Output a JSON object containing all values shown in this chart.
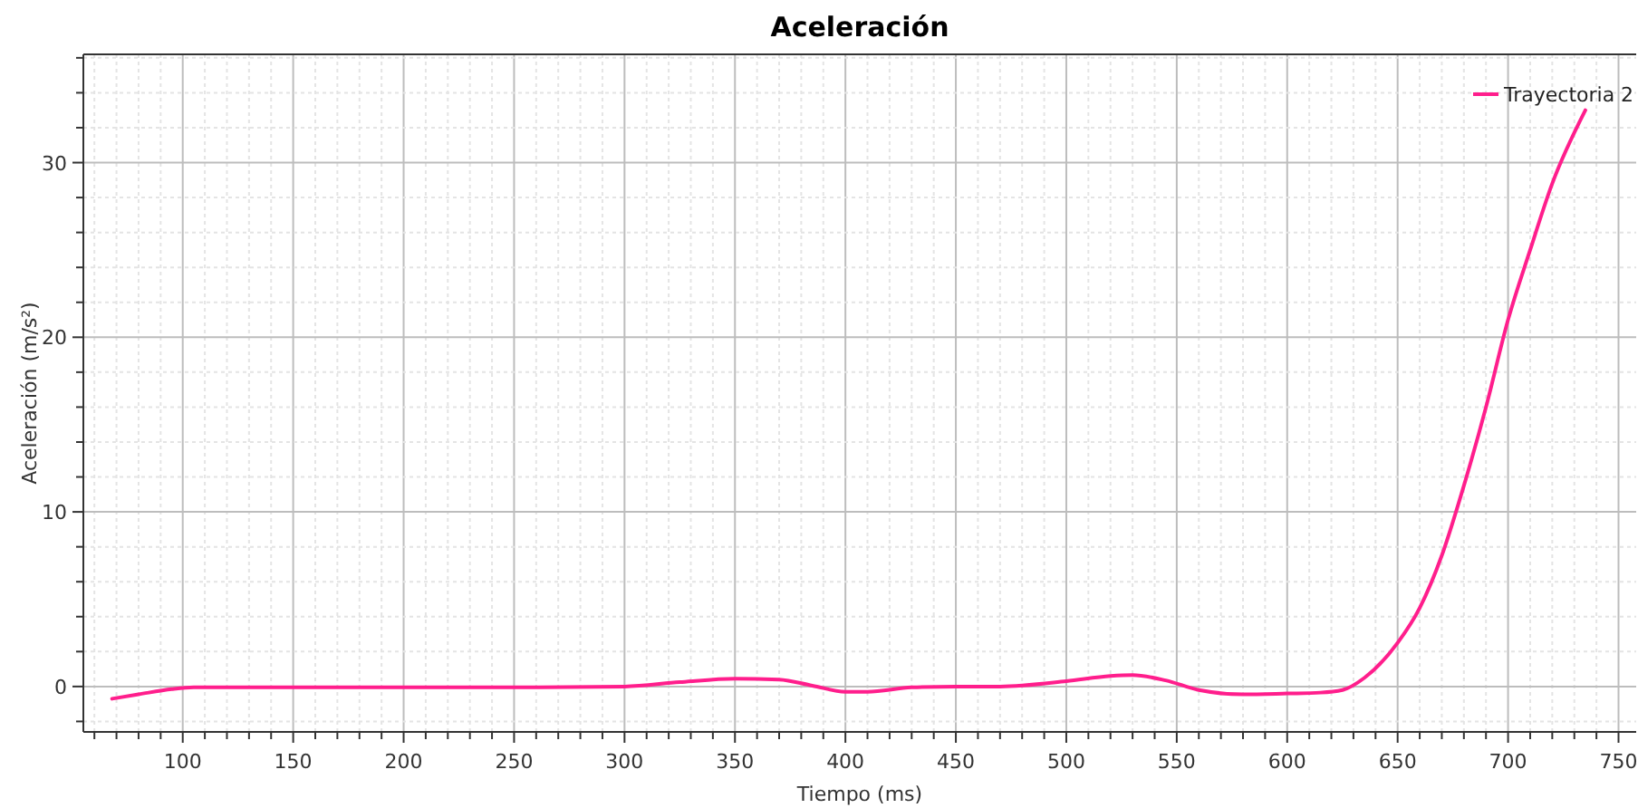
{
  "chart_data": {
    "type": "line",
    "title": "Aceleración",
    "xlabel": "Tiempo (ms)",
    "ylabel": "Aceleración (m/s²)",
    "xlim": [
      55,
      758
    ],
    "ylim": [
      -2.6,
      36.2
    ],
    "xticks": [
      {
        "value": 60,
        "label": null
      },
      {
        "value": 70,
        "label": null
      },
      {
        "value": 80,
        "label": null
      },
      {
        "value": 90,
        "label": null
      },
      100,
      {
        "value": 110,
        "label": null
      },
      {
        "value": 120,
        "label": null
      },
      {
        "value": 130,
        "label": null
      },
      {
        "value": 140,
        "label": null
      },
      150,
      {
        "value": 160,
        "label": null
      },
      {
        "value": 170,
        "label": null
      },
      {
        "value": 180,
        "label": null
      },
      {
        "value": 190,
        "label": null
      },
      200,
      {
        "value": 210,
        "label": null
      },
      {
        "value": 220,
        "label": null
      },
      {
        "value": 230,
        "label": null
      },
      {
        "value": 240,
        "label": null
      },
      250,
      {
        "value": 260,
        "label": null
      },
      {
        "value": 270,
        "label": null
      },
      {
        "value": 280,
        "label": null
      },
      {
        "value": 290,
        "label": null
      },
      300,
      {
        "value": 310,
        "label": null
      },
      {
        "value": 320,
        "label": null
      },
      {
        "value": 330,
        "label": null
      },
      {
        "value": 340,
        "label": null
      },
      350,
      {
        "value": 360,
        "label": null
      },
      {
        "value": 370,
        "label": null
      },
      {
        "value": 380,
        "label": null
      },
      {
        "value": 390,
        "label": null
      },
      400,
      {
        "value": 410,
        "label": null
      },
      {
        "value": 420,
        "label": null
      },
      {
        "value": 430,
        "label": null
      },
      {
        "value": 440,
        "label": null
      },
      450,
      {
        "value": 460,
        "label": null
      },
      {
        "value": 470,
        "label": null
      },
      {
        "value": 480,
        "label": null
      },
      {
        "value": 490,
        "label": null
      },
      500,
      {
        "value": 510,
        "label": null
      },
      {
        "value": 520,
        "label": null
      },
      {
        "value": 530,
        "label": null
      },
      {
        "value": 540,
        "label": null
      },
      550,
      {
        "value": 560,
        "label": null
      },
      {
        "value": 570,
        "label": null
      },
      {
        "value": 580,
        "label": null
      },
      {
        "value": 590,
        "label": null
      },
      600,
      {
        "value": 610,
        "label": null
      },
      {
        "value": 620,
        "label": null
      },
      {
        "value": 630,
        "label": null
      },
      {
        "value": 640,
        "label": null
      },
      650,
      {
        "value": 660,
        "label": null
      },
      {
        "value": 670,
        "label": null
      },
      {
        "value": 680,
        "label": null
      },
      {
        "value": 690,
        "label": null
      },
      700,
      {
        "value": 710,
        "label": null
      },
      {
        "value": 720,
        "label": null
      },
      {
        "value": 730,
        "label": null
      },
      {
        "value": 740,
        "label": null
      },
      750
    ],
    "yticks": [
      {
        "value": -2,
        "label": null
      },
      0,
      {
        "value": 2,
        "label": null
      },
      {
        "value": 4,
        "label": null
      },
      {
        "value": 6,
        "label": null
      },
      {
        "value": 8,
        "label": null
      },
      10,
      {
        "value": 12,
        "label": null
      },
      {
        "value": 14,
        "label": null
      },
      {
        "value": 16,
        "label": null
      },
      {
        "value": 18,
        "label": null
      },
      20,
      {
        "value": 22,
        "label": null
      },
      {
        "value": 24,
        "label": null
      },
      {
        "value": 26,
        "label": null
      },
      {
        "value": 28,
        "label": null
      },
      30,
      {
        "value": 32,
        "label": null
      },
      {
        "value": 34,
        "label": null
      },
      {
        "value": 36,
        "label": null
      }
    ],
    "grid": true,
    "legend": "top right",
    "marker": "none",
    "line_style": "solid",
    "x": [
      68,
      80,
      95,
      105,
      150,
      200,
      250,
      300,
      325,
      350,
      370,
      385,
      400,
      410,
      430,
      450,
      470,
      500,
      520,
      530,
      545,
      560,
      580,
      600,
      615,
      625,
      635,
      650,
      660,
      670,
      680,
      690,
      700,
      710,
      720,
      735
    ],
    "series": [
      {
        "name": "Trayectoria 2",
        "color": "#ff1e8c",
        "values": [
          -0.7,
          -0.45,
          -0.15,
          -0.05,
          -0.05,
          -0.05,
          -0.05,
          0,
          0.25,
          0.45,
          0.4,
          0.05,
          -0.3,
          -0.3,
          -0.05,
          0,
          0,
          0.3,
          0.6,
          0.65,
          0.35,
          -0.2,
          -0.45,
          -0.4,
          -0.35,
          -0.2,
          0.5,
          2.5,
          4.5,
          7.5,
          11.5,
          16,
          21,
          25,
          28.8,
          33
        ]
      }
    ]
  }
}
